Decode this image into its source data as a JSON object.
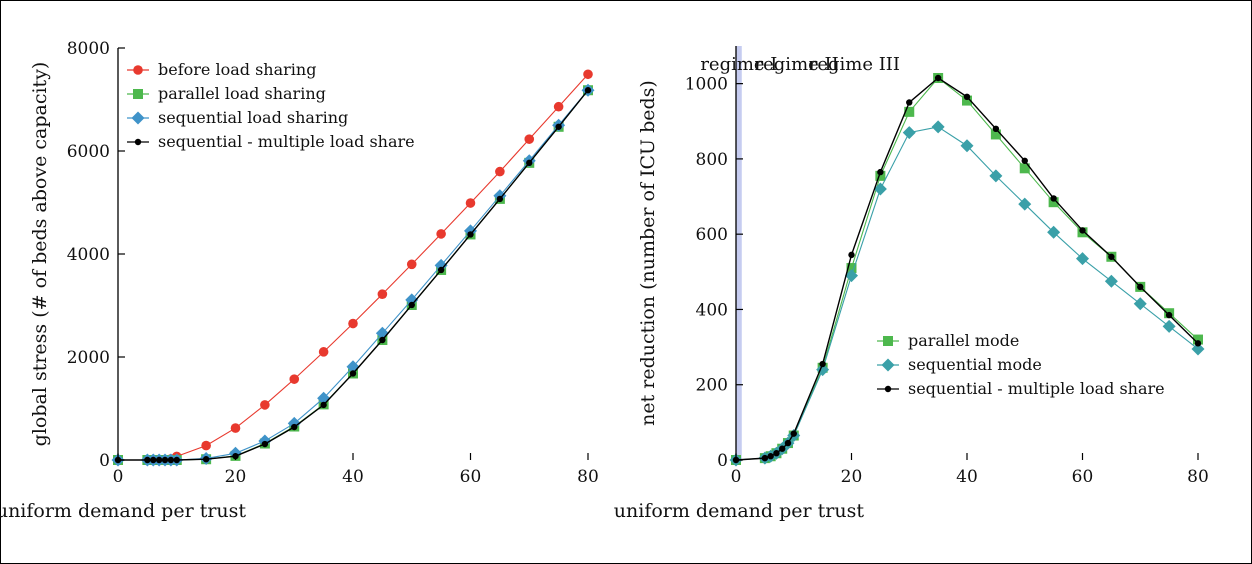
{
  "chart_data": [
    {
      "type": "line",
      "xlabel": "uniform demand per trust",
      "ylabel": "global stress (# of beds above capacity)",
      "xlim": [
        0,
        80
      ],
      "ylim": [
        0,
        8000
      ],
      "xticks": [
        "0",
        "20",
        "40",
        "60",
        "80"
      ],
      "yticks": [
        "0",
        "2000",
        "4000",
        "6000",
        "8000"
      ],
      "legend_position": "top-left",
      "x": [
        0,
        5,
        6,
        7,
        8,
        9,
        10,
        15,
        20,
        25,
        30,
        35,
        40,
        45,
        50,
        55,
        60,
        65,
        70,
        75,
        80
      ],
      "series": [
        {
          "name": "before load sharing",
          "marker": "circle",
          "color": "#e8392e",
          "values": [
            0,
            0,
            0,
            0,
            5,
            20,
            70,
            280,
            620,
            1070,
            1570,
            2100,
            2650,
            3220,
            3800,
            4390,
            4990,
            5600,
            6230,
            6860,
            7490
          ]
        },
        {
          "name": "parallel load sharing",
          "marker": "square",
          "color": "#4db84d",
          "values": [
            0,
            0,
            0,
            0,
            0,
            0,
            0,
            15,
            80,
            320,
            650,
            1080,
            1680,
            2330,
            3010,
            3690,
            4380,
            5070,
            5770,
            6470,
            7180
          ]
        },
        {
          "name": "sequential load sharing",
          "marker": "diamond",
          "color": "#3f93c9",
          "values": [
            0,
            0,
            0,
            0,
            0,
            0,
            0,
            30,
            130,
            370,
            710,
            1200,
            1810,
            2460,
            3110,
            3780,
            4450,
            5130,
            5810,
            6500,
            7180
          ]
        },
        {
          "name": "sequential - multiple load share",
          "marker": "dot",
          "color": "#000000",
          "values": [
            0,
            0,
            0,
            0,
            0,
            0,
            0,
            15,
            75,
            310,
            640,
            1070,
            1680,
            2330,
            3010,
            3690,
            4380,
            5070,
            5770,
            6470,
            7180
          ]
        }
      ]
    },
    {
      "type": "line",
      "xlabel": "uniform demand per trust",
      "ylabel": "net reduction (number of ICU beds)",
      "xlim": [
        0,
        80
      ],
      "ylim": [
        0,
        1100
      ],
      "xticks": [
        "0",
        "20",
        "40",
        "60",
        "80"
      ],
      "yticks": [
        "0",
        "200",
        "400",
        "600",
        "800",
        "1000"
      ],
      "legend_position": "bottom-right",
      "regions": [
        {
          "label": "regime I",
          "x0": 0,
          "x1": 20,
          "color": "#c6ccf0"
        },
        {
          "label": "regime II",
          "x0": 20,
          "x1": 40,
          "color": "#c6f7c6"
        },
        {
          "label": "regime III",
          "x0": 40,
          "x1": 81,
          "color": "#ffcaca"
        }
      ],
      "x": [
        0,
        5,
        6,
        7,
        8,
        9,
        10,
        15,
        20,
        25,
        30,
        35,
        40,
        45,
        50,
        55,
        60,
        65,
        70,
        75,
        80
      ],
      "series": [
        {
          "name": "parallel mode",
          "marker": "square",
          "color": "#4db84d",
          "values": [
            0,
            5,
            10,
            18,
            30,
            45,
            65,
            245,
            510,
            755,
            925,
            1015,
            955,
            865,
            775,
            685,
            605,
            540,
            460,
            390,
            320
          ]
        },
        {
          "name": "sequential mode",
          "marker": "diamond",
          "color": "#3aa0a8",
          "values": [
            0,
            5,
            10,
            18,
            30,
            45,
            65,
            240,
            490,
            720,
            870,
            885,
            835,
            755,
            680,
            605,
            535,
            475,
            415,
            355,
            295
          ]
        },
        {
          "name": "sequential - multiple load share",
          "marker": "dot",
          "color": "#000000",
          "values": [
            0,
            5,
            10,
            18,
            30,
            45,
            70,
            255,
            545,
            765,
            950,
            1015,
            965,
            880,
            795,
            695,
            610,
            540,
            460,
            385,
            310
          ]
        }
      ]
    }
  ]
}
